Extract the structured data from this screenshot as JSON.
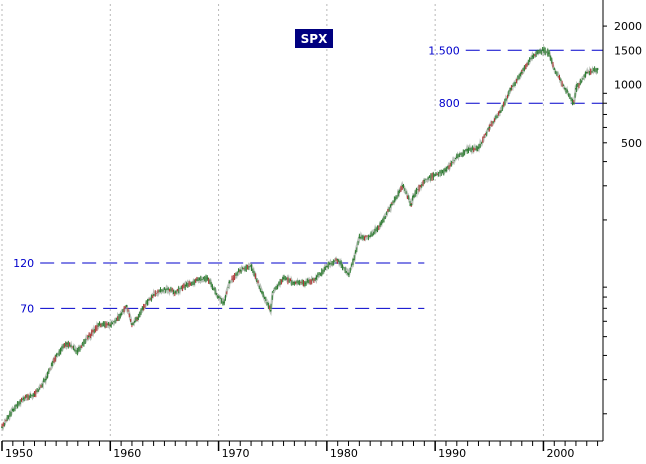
{
  "chart_data": {
    "type": "line",
    "title": "SPX",
    "title_style": {
      "background": "#000080",
      "color": "#ffffff"
    },
    "x_axis": {
      "ticks": [
        "1950",
        "1960",
        "1970",
        "1980",
        "1990",
        "2000"
      ],
      "range": [
        1950.0,
        2005.5
      ],
      "grid": "dotted vertical lines at labeled years"
    },
    "y_axis": {
      "scale": "log",
      "position": "right",
      "ticks": [
        "2000",
        "1500",
        "1000",
        "500"
      ],
      "tick_values": [
        2000,
        1500,
        1000,
        500
      ],
      "range": [
        15,
        2600
      ]
    },
    "reference_lines": [
      {
        "label": "1.500",
        "value": 1500,
        "x_range": [
          1989.5,
          2005.5
        ]
      },
      {
        "label": "800",
        "value": 800,
        "x_range": [
          1989.5,
          2005.5
        ]
      },
      {
        "label": "120",
        "value": 120,
        "x_range": [
          1950.2,
          1989.0
        ]
      },
      {
        "label": "70",
        "value": 70,
        "x_range": [
          1950.2,
          1989.0
        ]
      }
    ],
    "colors": {
      "bars": "#2e7d32",
      "bars_alt": "#b03030",
      "reference": "#0000cc",
      "axis": "#000000"
    },
    "series": [
      {
        "x": [
          1950,
          1951,
          1952,
          1953,
          1954,
          1955,
          1956,
          1957,
          1958,
          1959,
          1960,
          1961,
          1961.5,
          1962,
          1962.5,
          1963,
          1964,
          1965,
          1966,
          1967,
          1968,
          1969,
          1970,
          1970.5,
          1971,
          1972,
          1973,
          1974,
          1974.8,
          1975,
          1976,
          1977,
          1978,
          1979,
          1980,
          1981,
          1982,
          1982.5,
          1983,
          1984,
          1985,
          1986,
          1987,
          1987.8,
          1988,
          1989,
          1990,
          1991,
          1992,
          1993,
          1994,
          1995,
          1996,
          1997,
          1998,
          1999,
          2000,
          2000.5,
          2001,
          2002,
          2002.8,
          2003,
          2004,
          2005
        ],
        "values": [
          17,
          21,
          24,
          25,
          30,
          40,
          46,
          42,
          50,
          58,
          57,
          65,
          72,
          58,
          62,
          70,
          82,
          88,
          85,
          92,
          98,
          100,
          80,
          75,
          95,
          110,
          116,
          85,
          68,
          85,
          100,
          95,
          94,
          100,
          115,
          125,
          105,
          125,
          162,
          165,
          190,
          240,
          300,
          240,
          265,
          320,
          340,
          360,
          420,
          460,
          470,
          600,
          720,
          950,
          1150,
          1400,
          1500,
          1450,
          1200,
          950,
          800,
          950,
          1150,
          1200
        ]
      }
    ]
  }
}
